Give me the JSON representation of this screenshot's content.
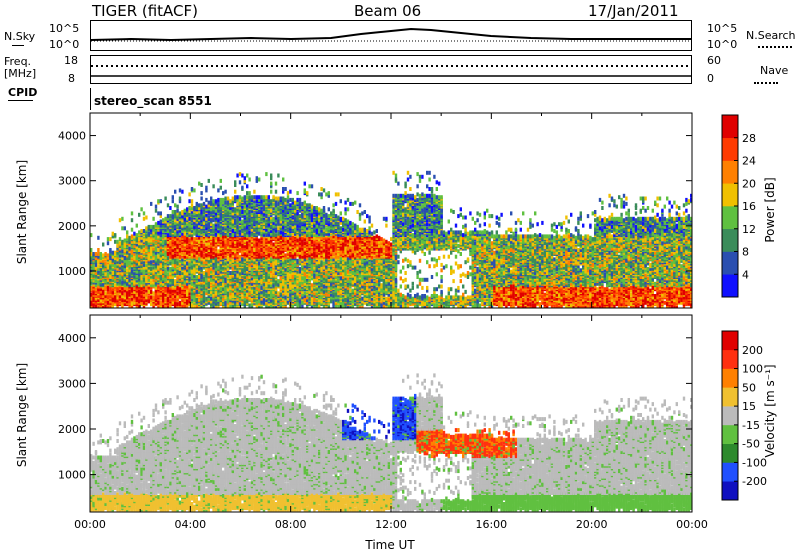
{
  "header": {
    "title": "TIGER (fitACF)",
    "beam": "Beam 06",
    "date": "17/Jan/2011"
  },
  "top_panels": {
    "nsky_label": "N.Sky",
    "nsky_ticks": [
      "10^5",
      "10^0"
    ],
    "nsearch_label": "N.Search",
    "nsearch_ticks": [
      "10^5",
      "10^0"
    ],
    "freq_label_1": "Freq.",
    "freq_label_2": "[MHz]",
    "freq_ticks": [
      "18",
      "8"
    ],
    "nave_label": "Nave",
    "nave_ticks": [
      "60",
      "0"
    ],
    "cpid_label": "CPID",
    "cpid_value": "stereo_scan 8551"
  },
  "chart_data": [
    {
      "type": "heatmap",
      "name": "power",
      "ylabel": "Slant Range [km]",
      "xlabel": "",
      "yticks": [
        "1000",
        "2000",
        "3000",
        "4000"
      ],
      "ylim": [
        180,
        4500
      ],
      "xlim_hours": [
        0,
        24
      ],
      "colorbar_label": "Power [dB]",
      "colorbar_ticks": [
        "4",
        "8",
        "12",
        "16",
        "20",
        "24",
        "28"
      ],
      "colorbar_colors": [
        "#1010ff",
        "#2a4fb0",
        "#3a8c5a",
        "#5fc040",
        "#f0c000",
        "#ff8000",
        "#ff3a00",
        "#e00000"
      ]
    },
    {
      "type": "heatmap",
      "name": "velocity",
      "ylabel": "Slant Range [km]",
      "xlabel": "Time UT",
      "yticks": [
        "1000",
        "2000",
        "3000",
        "4000"
      ],
      "ylim": [
        180,
        4500
      ],
      "xlim_hours": [
        0,
        24
      ],
      "xticks": [
        "00:00",
        "04:00",
        "08:00",
        "12:00",
        "16:00",
        "20:00",
        "00:00"
      ],
      "colorbar_label": "Velocity [m s⁻¹]",
      "colorbar_ticks": [
        "200",
        "100",
        "50",
        "15",
        "-15",
        "-50",
        "-100",
        "-200"
      ],
      "colorbar_colors": [
        "#1010c0",
        "#2050ff",
        "#2d8a2d",
        "#60c040",
        "#bbbbbb",
        "#f0c030",
        "#ff8000",
        "#ff3010",
        "#e00000"
      ]
    }
  ]
}
